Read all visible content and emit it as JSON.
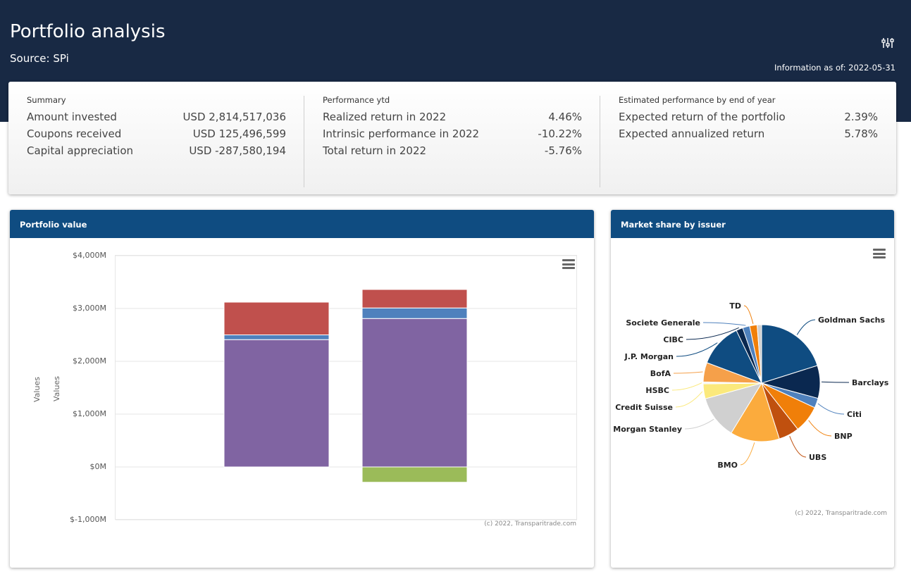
{
  "header": {
    "title": "Portfolio analysis",
    "source": "Source: SPi",
    "info_date": "Information as of: 2022-05-31"
  },
  "summary": {
    "summary_col": {
      "heading": "Summary",
      "rows": [
        {
          "label": "Amount invested",
          "value": "USD 2,814,517,036"
        },
        {
          "label": "Coupons received",
          "value": "USD 125,496,599"
        },
        {
          "label": "Capital appreciation",
          "value": "USD -287,580,194"
        }
      ]
    },
    "performance_col": {
      "heading": "Performance ytd",
      "rows": [
        {
          "label": "Realized return in 2022",
          "value": "4.46%"
        },
        {
          "label": "Intrinsic performance in 2022",
          "value": "-10.22%"
        },
        {
          "label": "Total return in 2022",
          "value": "-5.76%"
        }
      ]
    },
    "estimate_col": {
      "heading": "Estimated performance by end of year",
      "rows": [
        {
          "label": "Expected return of the portfolio",
          "value": "2.39%"
        },
        {
          "label": "Expected annualized return",
          "value": "5.78%"
        }
      ]
    }
  },
  "portfolio_panel": {
    "title": "Portfolio value",
    "y_axis_label": "Values",
    "y_axis_label_2": "Values",
    "credit": "(c) 2022, Transparitrade.com",
    "menu_icon": "hamburger-icon"
  },
  "market_panel": {
    "title": "Market share by issuer",
    "credit": "(c) 2022, Transparitrade.com",
    "menu_icon": "hamburger-icon"
  },
  "chart_data": [
    {
      "type": "bar",
      "stacked": true,
      "title": "",
      "ylabel": "Values",
      "ylim": [
        -1000,
        4000
      ],
      "y_ticks": [
        "$-1,000M",
        "$0M",
        "$1,000M",
        "$2,000M",
        "$3,000M",
        "$4,000M"
      ],
      "y_tick_values": [
        -1000,
        0,
        1000,
        2000,
        3000,
        4000
      ],
      "categories": [
        "",
        ""
      ],
      "series": [
        {
          "color": "#8064a2",
          "values": [
            2410,
            2810
          ]
        },
        {
          "color": "#4f81bd",
          "values": [
            90,
            200
          ]
        },
        {
          "color": "#c0504d",
          "values": [
            620,
            350
          ]
        },
        {
          "color": "#9bbb59",
          "values": [
            0,
            -290
          ]
        }
      ],
      "grid": true
    },
    {
      "type": "pie",
      "title": "",
      "slices": [
        {
          "label": "Goldman Sachs",
          "value": 19.5,
          "color": "#0f4c81"
        },
        {
          "label": "Barclays",
          "value": 8.8,
          "color": "#0a2850"
        },
        {
          "label": "Citi",
          "value": 2.6,
          "color": "#4f81bd"
        },
        {
          "label": "BNP",
          "value": 7.3,
          "color": "#f07f09"
        },
        {
          "label": "UBS",
          "value": 5.5,
          "color": "#c0500e"
        },
        {
          "label": "BMO",
          "value": 13.2,
          "color": "#fbab3d"
        },
        {
          "label": "Morgan Stanley",
          "value": 11.6,
          "color": "#d0d0d0"
        },
        {
          "label": "Credit Suisse",
          "value": 4.0,
          "color": "#fbe97c"
        },
        {
          "label": "HSBC",
          "value": 0.5,
          "color": "#f5f5f5"
        },
        {
          "label": "BofA",
          "value": 5.2,
          "color": "#f5a04a"
        },
        {
          "label": "J.P. Morgan",
          "value": 11.8,
          "color": "#0f4c81"
        },
        {
          "label": "CIBC",
          "value": 1.8,
          "color": "#0a2850"
        },
        {
          "label": "Societe Generale",
          "value": 1.9,
          "color": "#4f81bd"
        },
        {
          "label": "TD",
          "value": 2.0,
          "color": "#f07f09"
        },
        {
          "label": "",
          "value": 1.2,
          "color": "#d0d0d0"
        }
      ]
    }
  ]
}
